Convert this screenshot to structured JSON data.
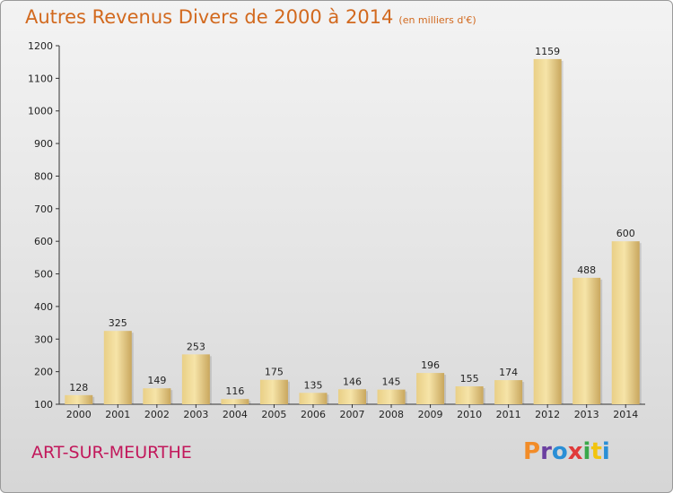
{
  "header": {
    "title": "Autres Revenus Divers de 2000 à 2014",
    "unit": "(en milliers d'€)"
  },
  "footer": {
    "place_name": "ART-SUR-MEURTHE",
    "brand": "Proxiti",
    "brand_colors": [
      "#f28c28",
      "#6a3fa0",
      "#2a8fd6",
      "#e03a3a",
      "#3aa84a",
      "#f2c40f",
      "#2a8fd6"
    ]
  },
  "colors": {
    "title": "#d2691e",
    "place_name": "#c2185b",
    "bar_light": "#f5e1a4",
    "bar_dark": "#c9a75e",
    "axis": "#333333",
    "grid": "#bdbdbd"
  },
  "chart_data": {
    "type": "bar",
    "title": "Autres Revenus Divers de 2000 à 2014",
    "subtitle": "(en milliers d'€)",
    "xlabel": "",
    "ylabel": "",
    "categories": [
      "2000",
      "2001",
      "2002",
      "2003",
      "2004",
      "2005",
      "2006",
      "2007",
      "2008",
      "2009",
      "2010",
      "2011",
      "2012",
      "2013",
      "2014"
    ],
    "values": [
      128,
      325,
      149,
      253,
      116,
      175,
      135,
      146,
      145,
      196,
      155,
      174,
      1159,
      488,
      600
    ],
    "data_labels": [
      "128",
      "325",
      "149",
      "253",
      "116",
      "175",
      "135",
      "146",
      "145",
      "196",
      "155",
      "174",
      "1159",
      "488",
      "600"
    ],
    "ylim": [
      100,
      1200
    ],
    "yticks": [
      100,
      200,
      300,
      400,
      500,
      600,
      700,
      800,
      900,
      1000,
      1100,
      1200
    ],
    "grid": false,
    "legend": "none"
  }
}
